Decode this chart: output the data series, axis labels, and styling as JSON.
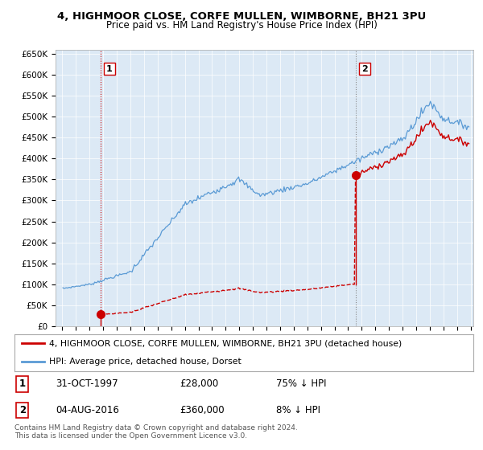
{
  "title": "4, HIGHMOOR CLOSE, CORFE MULLEN, WIMBORNE, BH21 3PU",
  "subtitle": "Price paid vs. HM Land Registry's House Price Index (HPI)",
  "legend_line1": "4, HIGHMOOR CLOSE, CORFE MULLEN, WIMBORNE, BH21 3PU (detached house)",
  "legend_line2": "HPI: Average price, detached house, Dorset",
  "sale1_date": "31-OCT-1997",
  "sale1_price": "£28,000",
  "sale1_hpi": "75% ↓ HPI",
  "sale2_date": "04-AUG-2016",
  "sale2_price": "£360,000",
  "sale2_hpi": "8% ↓ HPI",
  "footer": "Contains HM Land Registry data © Crown copyright and database right 2024.\nThis data is licensed under the Open Government Licence v3.0.",
  "hpi_color": "#5b9bd5",
  "sale_color": "#cc0000",
  "sale1_x": 1997.83,
  "sale1_y": 28000,
  "sale2_x": 2016.58,
  "sale2_y": 360000,
  "ylim": [
    0,
    660000
  ],
  "xlim_start": 1994.5,
  "xlim_end": 2025.2,
  "yticks": [
    0,
    50000,
    100000,
    150000,
    200000,
    250000,
    300000,
    350000,
    400000,
    450000,
    500000,
    550000,
    600000,
    650000
  ],
  "ytick_labels": [
    "£0",
    "£50K",
    "£100K",
    "£150K",
    "£200K",
    "£250K",
    "£300K",
    "£350K",
    "£400K",
    "£450K",
    "£500K",
    "£550K",
    "£600K",
    "£650K"
  ],
  "plot_bg_color": "#dce9f5",
  "background_color": "#ffffff",
  "grid_color": "#ffffff"
}
